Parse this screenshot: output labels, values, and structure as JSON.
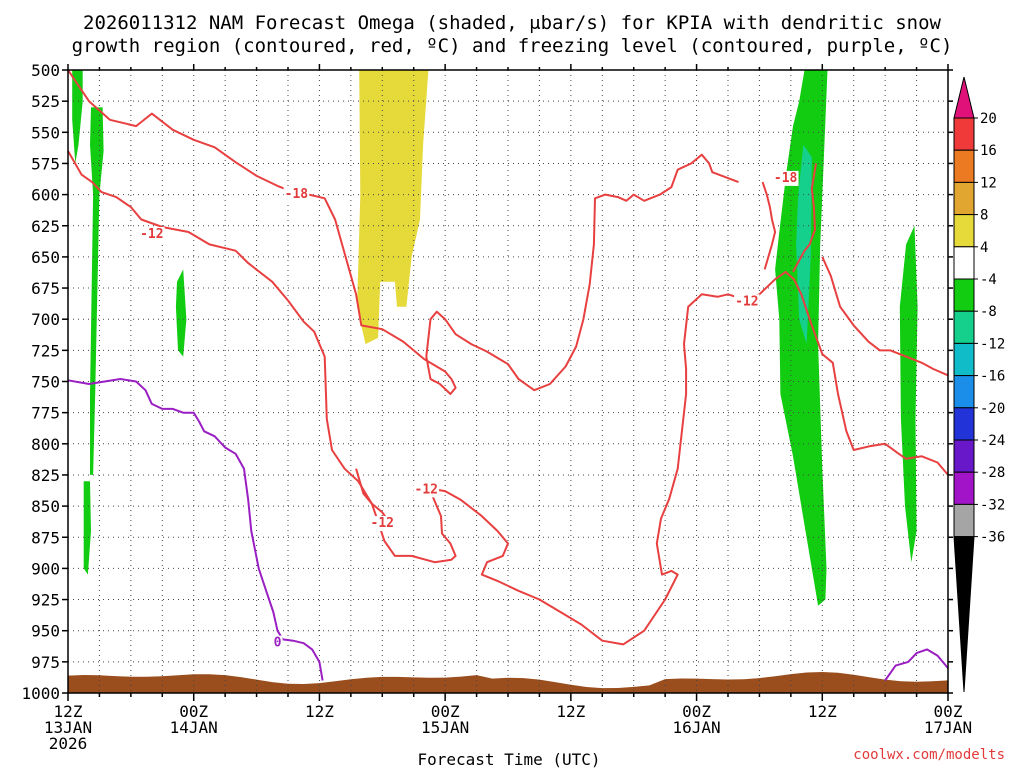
{
  "chart_data": {
    "type": "time-height contour",
    "title_line1": "2026011312 NAM Forecast Omega (shaded, μbar/s) for KPIA with dendritic snow",
    "title_line2": "growth region (contoured, red, ºC) and freezing level (contoured, purple, ºC)",
    "xlabel": "Forecast Time (UTC)",
    "credit": "coolwx.com/modelts",
    "x_range_hours": [
      0,
      84
    ],
    "y_range_mb": [
      1000,
      500
    ],
    "y_ticks": [
      "500",
      "525",
      "550",
      "575",
      "600",
      "625",
      "650",
      "675",
      "700",
      "725",
      "750",
      "775",
      "800",
      "825",
      "850",
      "875",
      "900",
      "925",
      "950",
      "975",
      "1000"
    ],
    "x_ticks": [
      {
        "hour": 0,
        "line1": "12Z",
        "line2": "13JAN",
        "line3": "2026"
      },
      {
        "hour": 12,
        "line1": "00Z",
        "line2": "14JAN",
        "line3": ""
      },
      {
        "hour": 24,
        "line1": "12Z",
        "line2": "",
        "line3": ""
      },
      {
        "hour": 36,
        "line1": "00Z",
        "line2": "15JAN",
        "line3": ""
      },
      {
        "hour": 48,
        "line1": "12Z",
        "line2": "",
        "line3": ""
      },
      {
        "hour": 60,
        "line1": "00Z",
        "line2": "16JAN",
        "line3": ""
      },
      {
        "hour": 72,
        "line1": "12Z",
        "line2": "",
        "line3": ""
      },
      {
        "hour": 84,
        "line1": "00Z",
        "line2": "17JAN",
        "line3": ""
      }
    ],
    "colorbar": {
      "labels": [
        "20",
        "16",
        "12",
        "8",
        "4",
        "-4",
        "-8",
        "-12",
        "-16",
        "-20",
        "-24",
        "-28",
        "-32",
        "-36"
      ],
      "segments": [
        {
          "from": 16,
          "to": 20,
          "color": "#f03a3a"
        },
        {
          "from": 12,
          "to": 16,
          "color": "#ec7a22"
        },
        {
          "from": 8,
          "to": 12,
          "color": "#e0a630"
        },
        {
          "from": 4,
          "to": 8,
          "color": "#e6d93a"
        },
        {
          "from": -4,
          "to": 4,
          "color": "#ffffff"
        },
        {
          "from": -8,
          "to": -4,
          "color": "#12cc12"
        },
        {
          "from": -12,
          "to": -8,
          "color": "#14d08c"
        },
        {
          "from": -16,
          "to": -12,
          "color": "#10bcc8"
        },
        {
          "from": -20,
          "to": -16,
          "color": "#1a8ee8"
        },
        {
          "from": -24,
          "to": -20,
          "color": "#2233d8"
        },
        {
          "from": -28,
          "to": -24,
          "color": "#6818c8"
        },
        {
          "from": -32,
          "to": -28,
          "color": "#a214c8"
        },
        {
          "from": -36,
          "to": -32,
          "color": "#a5a5a5"
        }
      ],
      "top_arrow_color": "#e0127a",
      "bottom_arrow_color": "#000000"
    },
    "omega_regions": [
      {
        "color": "#12cc12",
        "pts": [
          [
            0.4,
            500
          ],
          [
            1.4,
            500
          ],
          [
            1.4,
            525
          ],
          [
            1.0,
            560
          ],
          [
            0.7,
            575
          ],
          [
            0.4,
            540
          ]
        ]
      },
      {
        "color": "#12cc12",
        "pts": [
          [
            2.2,
            530
          ],
          [
            3.3,
            530
          ],
          [
            3.4,
            565
          ],
          [
            3.0,
            600
          ],
          [
            2.6,
            760
          ],
          [
            2.4,
            825
          ],
          [
            2.1,
            825
          ],
          [
            2.1,
            760
          ],
          [
            2.4,
            600
          ],
          [
            2.1,
            560
          ]
        ]
      },
      {
        "color": "#12cc12",
        "pts": [
          [
            1.5,
            830
          ],
          [
            2.1,
            830
          ],
          [
            2.2,
            870
          ],
          [
            1.9,
            905
          ],
          [
            1.5,
            900
          ]
        ]
      },
      {
        "color": "#12cc12",
        "pts": [
          [
            10.4,
            670
          ],
          [
            11.0,
            660
          ],
          [
            11.3,
            700
          ],
          [
            11.0,
            730
          ],
          [
            10.5,
            725
          ],
          [
            10.3,
            690
          ]
        ]
      },
      {
        "color": "#e6d93a",
        "pts": [
          [
            27.8,
            500
          ],
          [
            34.4,
            500
          ],
          [
            33.9,
            560
          ],
          [
            33.6,
            620
          ],
          [
            32.8,
            650
          ],
          [
            32.3,
            690
          ],
          [
            31.4,
            690
          ],
          [
            31.2,
            670
          ],
          [
            29.8,
            670
          ],
          [
            29.6,
            715
          ],
          [
            28.4,
            720
          ],
          [
            27.6,
            690
          ],
          [
            27.9,
            600
          ]
        ]
      },
      {
        "color": "#12cc12",
        "pts": [
          [
            70.3,
            500
          ],
          [
            72.5,
            500
          ],
          [
            72.2,
            560
          ],
          [
            71.8,
            640
          ],
          [
            71.6,
            720
          ],
          [
            72.0,
            820
          ],
          [
            72.4,
            900
          ],
          [
            72.3,
            925
          ],
          [
            71.6,
            930
          ],
          [
            70.4,
            870
          ],
          [
            69.2,
            810
          ],
          [
            68.0,
            760
          ],
          [
            67.9,
            700
          ],
          [
            67.5,
            660
          ],
          [
            67.9,
            630
          ],
          [
            68.6,
            580
          ],
          [
            69.2,
            545
          ],
          [
            69.8,
            525
          ]
        ]
      },
      {
        "color": "#14d08c",
        "pts": [
          [
            70.2,
            560
          ],
          [
            71.0,
            570
          ],
          [
            70.9,
            650
          ],
          [
            70.5,
            720
          ],
          [
            69.8,
            700
          ],
          [
            69.5,
            640
          ],
          [
            69.7,
            600
          ]
        ]
      },
      {
        "color": "#12cc12",
        "pts": [
          [
            80.0,
            640
          ],
          [
            80.8,
            625
          ],
          [
            81.1,
            690
          ],
          [
            80.9,
            780
          ],
          [
            81.0,
            870
          ],
          [
            80.5,
            895
          ],
          [
            79.9,
            850
          ],
          [
            79.5,
            780
          ],
          [
            79.4,
            690
          ]
        ]
      }
    ],
    "red_contour_label": "-12",
    "red_contour_label_b": "-18",
    "purple_contour_label": "0",
    "red_contours": [
      [
        [
          0,
          500
        ],
        [
          2,
          525
        ],
        [
          4,
          540
        ],
        [
          6.5,
          545
        ],
        [
          8,
          535
        ],
        [
          10,
          548
        ],
        [
          12,
          556
        ],
        [
          14,
          562
        ],
        [
          16,
          574
        ],
        [
          18,
          585
        ],
        [
          20,
          593
        ],
        [
          21.5,
          598
        ],
        [
          23,
          600
        ],
        [
          24.5,
          603
        ],
        [
          25.5,
          620
        ],
        [
          26.5,
          650
        ],
        [
          27.5,
          680
        ],
        [
          28,
          705
        ],
        [
          30,
          708
        ],
        [
          32,
          718
        ],
        [
          34,
          732
        ],
        [
          36,
          742
        ],
        [
          36.6,
          748
        ],
        [
          37,
          755
        ],
        [
          36.5,
          760
        ],
        [
          35.5,
          752
        ],
        [
          34.6,
          748
        ],
        [
          34.2,
          730
        ],
        [
          34.6,
          700
        ],
        [
          35.2,
          694
        ],
        [
          36,
          700
        ],
        [
          37,
          712
        ],
        [
          38.5,
          720
        ],
        [
          40,
          726
        ],
        [
          42,
          736
        ],
        [
          43,
          748
        ],
        [
          44.5,
          757
        ],
        [
          46,
          752
        ],
        [
          47.5,
          738
        ],
        [
          48.5,
          722
        ],
        [
          49.2,
          700
        ],
        [
          49.8,
          672
        ],
        [
          50.2,
          640
        ],
        [
          50.3,
          603
        ],
        [
          51.3,
          600
        ],
        [
          52.5,
          602
        ],
        [
          53.3,
          605
        ],
        [
          54,
          600
        ],
        [
          55,
          605
        ],
        [
          56.5,
          600
        ],
        [
          57.6,
          594
        ],
        [
          58.2,
          580
        ],
        [
          59.5,
          575
        ],
        [
          60.5,
          568
        ],
        [
          61.2,
          575
        ],
        [
          61.5,
          582
        ],
        [
          64,
          590
        ]
      ],
      [
        [
          0,
          565
        ],
        [
          1.3,
          584
        ],
        [
          2.3,
          590
        ],
        [
          3.2,
          598
        ],
        [
          4.6,
          602
        ],
        [
          6.0,
          610
        ],
        [
          7.0,
          620
        ],
        [
          9.0,
          626
        ],
        [
          11.5,
          630
        ],
        [
          13.5,
          640
        ],
        [
          16,
          645
        ],
        [
          17.2,
          655
        ],
        [
          19.5,
          670
        ],
        [
          21,
          685
        ],
        [
          22.5,
          702
        ],
        [
          23.5,
          710
        ],
        [
          24.5,
          730
        ],
        [
          24.7,
          780
        ],
        [
          25.2,
          805
        ],
        [
          26.4,
          820
        ],
        [
          27.7,
          830
        ],
        [
          29,
          848
        ],
        [
          29.5,
          860
        ],
        [
          30.2,
          878
        ],
        [
          31.2,
          890
        ],
        [
          32.8,
          890
        ],
        [
          35,
          895
        ],
        [
          36.6,
          893
        ],
        [
          37,
          890
        ],
        [
          36.5,
          880
        ],
        [
          35.7,
          872
        ],
        [
          35.6,
          858
        ],
        [
          34.7,
          840
        ],
        [
          33.8,
          835
        ],
        [
          36,
          838
        ],
        [
          37.5,
          845
        ],
        [
          39.5,
          858
        ],
        [
          41,
          870
        ],
        [
          42,
          880
        ],
        [
          41.5,
          890
        ],
        [
          40,
          895
        ],
        [
          39.5,
          905
        ],
        [
          41,
          910
        ],
        [
          43,
          918
        ],
        [
          45,
          925
        ],
        [
          47,
          935
        ],
        [
          49,
          945
        ],
        [
          51,
          958
        ],
        [
          53,
          961
        ],
        [
          55,
          950
        ],
        [
          57,
          925
        ],
        [
          58.2,
          905
        ],
        [
          57.6,
          902
        ],
        [
          56.7,
          905
        ],
        [
          56.2,
          880
        ],
        [
          56.6,
          860
        ],
        [
          57.4,
          844
        ],
        [
          58.2,
          820
        ],
        [
          58.6,
          790
        ],
        [
          59,
          760
        ],
        [
          59,
          740
        ],
        [
          58.8,
          720
        ],
        [
          59.2,
          690
        ],
        [
          60.5,
          680
        ],
        [
          62,
          682
        ],
        [
          63,
          680
        ],
        [
          64.5,
          684
        ],
        [
          66,
          680
        ],
        [
          67.5,
          668
        ],
        [
          68.5,
          662
        ],
        [
          69.3,
          668
        ],
        [
          70,
          680
        ],
        [
          71,
          705
        ],
        [
          72,
          728
        ],
        [
          73,
          735
        ],
        [
          73.5,
          760
        ],
        [
          74.3,
          790
        ],
        [
          75,
          805
        ],
        [
          76.5,
          802
        ],
        [
          78,
          800
        ],
        [
          79.3,
          808
        ],
        [
          80,
          812
        ],
        [
          81.5,
          810
        ],
        [
          83,
          815
        ],
        [
          84,
          825
        ]
      ],
      [
        [
          66.5,
          660
        ],
        [
          67.2,
          640
        ],
        [
          67.5,
          630
        ],
        [
          67.2,
          620
        ],
        [
          67,
          610
        ],
        [
          66.7,
          600
        ],
        [
          66.3,
          590
        ]
      ],
      [
        [
          69.2,
          662
        ],
        [
          70.3,
          645
        ],
        [
          70.8,
          640
        ],
        [
          71.3,
          628
        ],
        [
          71.2,
          610
        ],
        [
          71,
          595
        ],
        [
          71.2,
          585
        ],
        [
          71.4,
          575
        ]
      ],
      [
        [
          72,
          650
        ],
        [
          72.8,
          665
        ],
        [
          73.7,
          690
        ],
        [
          75,
          705
        ],
        [
          76.4,
          718
        ],
        [
          77.5,
          725
        ],
        [
          78.5,
          725
        ],
        [
          80,
          730
        ],
        [
          81.5,
          735
        ],
        [
          82.6,
          740
        ],
        [
          84,
          745
        ]
      ],
      [
        [
          27.5,
          820
        ],
        [
          28.2,
          840
        ],
        [
          29,
          848
        ],
        [
          30,
          855
        ],
        [
          30.4,
          860
        ],
        [
          29.6,
          865
        ]
      ]
    ],
    "purple_contours": [
      [
        [
          0,
          749
        ],
        [
          2,
          752
        ],
        [
          3.5,
          750
        ],
        [
          5,
          748
        ],
        [
          6.5,
          750
        ],
        [
          7.4,
          757
        ],
        [
          8,
          768
        ],
        [
          9,
          772
        ],
        [
          10,
          772
        ],
        [
          11,
          775
        ],
        [
          12,
          775
        ],
        [
          12.5,
          782
        ],
        [
          13,
          790
        ],
        [
          14,
          794
        ],
        [
          15,
          803
        ],
        [
          16,
          808
        ],
        [
          16.8,
          820
        ],
        [
          17.2,
          845
        ],
        [
          17.5,
          870
        ],
        [
          18.2,
          900
        ],
        [
          19,
          920
        ],
        [
          19.6,
          935
        ],
        [
          20,
          950
        ],
        [
          20.5,
          957
        ],
        [
          21.5,
          958
        ],
        [
          22.5,
          960
        ],
        [
          23.3,
          965
        ],
        [
          24,
          975
        ],
        [
          24.3,
          990
        ]
      ],
      [
        [
          78,
          990
        ],
        [
          79,
          978
        ],
        [
          80.2,
          975
        ],
        [
          81,
          968
        ],
        [
          82,
          965
        ],
        [
          83,
          970
        ],
        [
          84,
          980
        ]
      ]
    ]
  }
}
